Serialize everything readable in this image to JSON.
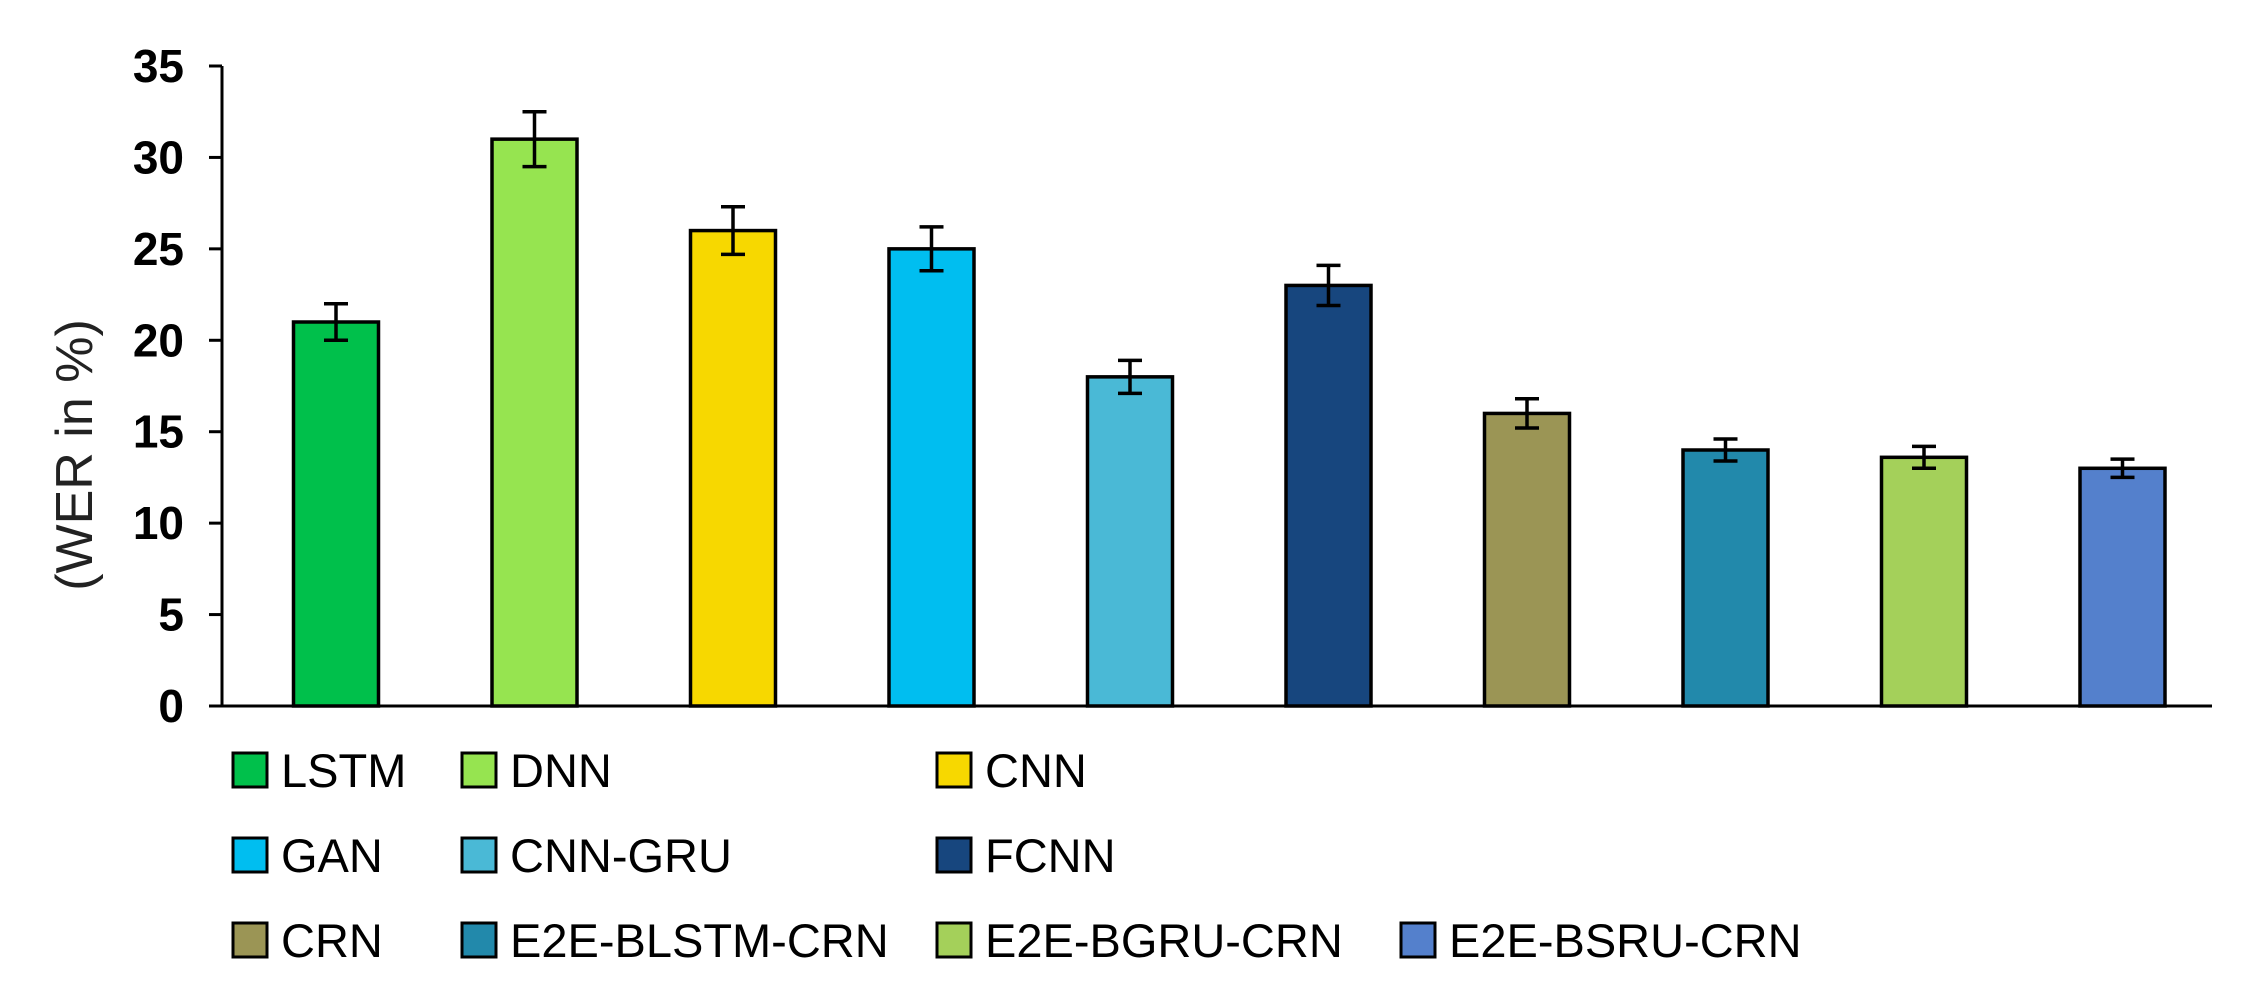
{
  "chart_data": {
    "type": "bar",
    "title": "",
    "xlabel": "",
    "ylabel": "(WER in %)",
    "ylim": [
      0,
      35
    ],
    "yticks": [
      0,
      5,
      10,
      15,
      20,
      25,
      30,
      35
    ],
    "grid": false,
    "legend_position": "bottom",
    "error_bars": true,
    "categories": [
      "LSTM",
      "DNN",
      "CNN",
      "GAN",
      "CNN-GRU",
      "FCNN",
      "CRN",
      "E2E-BLSTM-CRN",
      "E2E-BGRU-CRN",
      "E2E-BSRU-CRN"
    ],
    "values": [
      21,
      31,
      26,
      25,
      18,
      23,
      16,
      14,
      13.6,
      13
    ],
    "errors": [
      1.0,
      1.5,
      1.3,
      1.2,
      0.9,
      1.1,
      0.8,
      0.6,
      0.6,
      0.5
    ],
    "colors": [
      "#00c04b",
      "#96e450",
      "#f7d800",
      "#00bef0",
      "#4ab9d6",
      "#17467e",
      "#9b9555",
      "#2289ab",
      "#a4d05a",
      "#5480cc"
    ]
  }
}
